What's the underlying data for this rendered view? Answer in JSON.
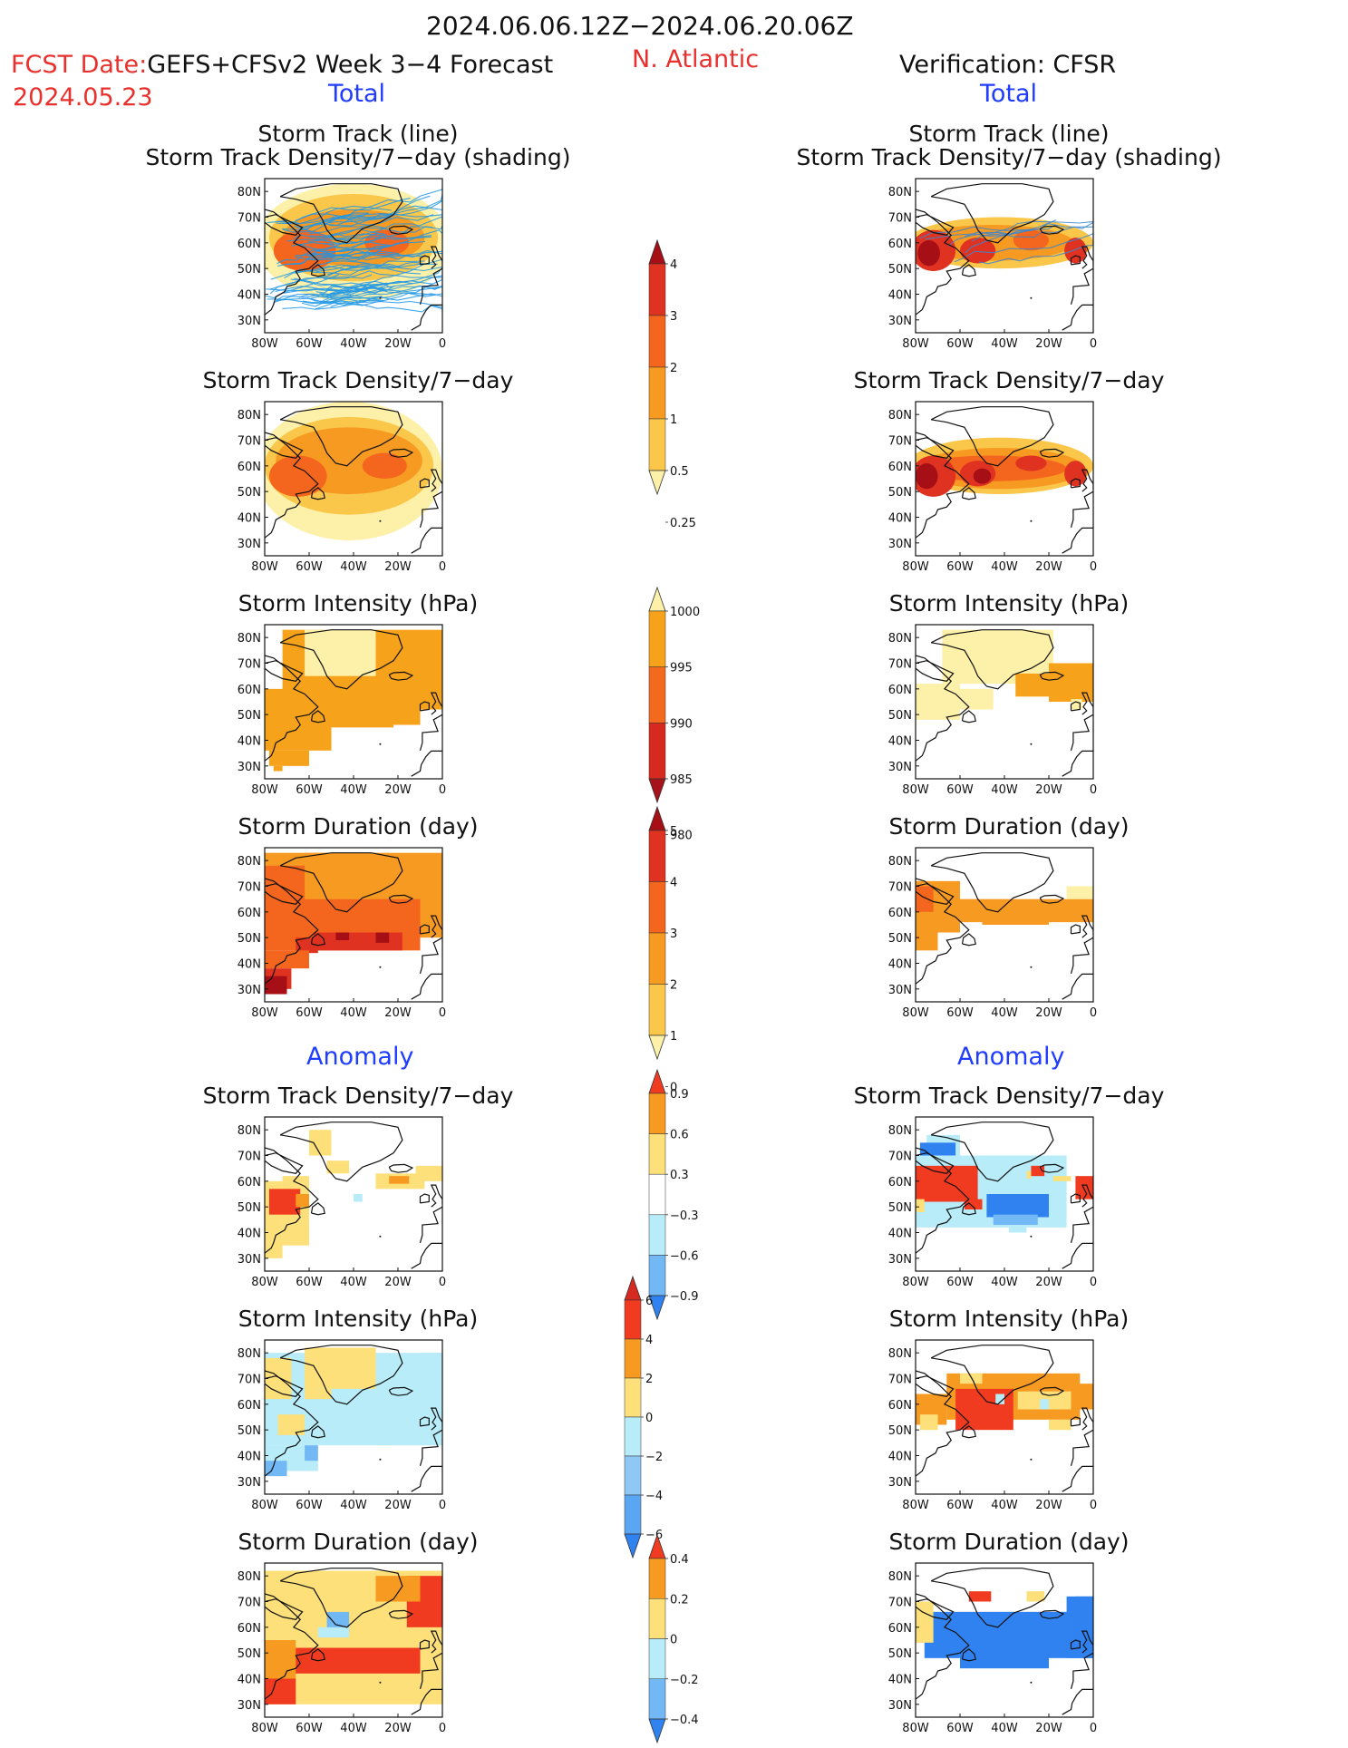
{
  "header": {
    "date_range": "2024.06.06.12Z−2024.06.20.06Z",
    "fcst_label": "FCST Date:",
    "model_label": "GEFS+CFSv2 Week 3−4 Forecast",
    "fcst_date": "2024.05.23",
    "region": "N. Atlantic",
    "verification": "Verification: CFSR",
    "total_left": "Total",
    "total_right": "Total",
    "anomaly_left": "Anomaly",
    "anomaly_right": "Anomaly"
  },
  "titles": {
    "track_line": "Storm Track (line)",
    "track_density_shading": "Storm Track Density/7−day (shading)",
    "track_density": "Storm Track Density/7−day",
    "intensity": "Storm Intensity (hPa)",
    "duration": "Storm Duration (day)"
  },
  "axes": {
    "lon_ticks": [
      "80W",
      "60W",
      "40W",
      "20W",
      "0"
    ],
    "lat_ticks": [
      "80N",
      "70N",
      "60N",
      "50N",
      "40N",
      "30N"
    ]
  },
  "colorbars": {
    "density": {
      "labels": [
        "4",
        "3",
        "2",
        "1",
        "0.5",
        "0.25"
      ],
      "colors": [
        "#a50f15",
        "#e03221",
        "#f4661d",
        "#f79a22",
        "#fbc74a",
        "#fdf0a8"
      ]
    },
    "intensity": {
      "labels": [
        "1000",
        "995",
        "990",
        "985",
        "980"
      ],
      "colors": [
        "#fdf0a8",
        "#f7a21b",
        "#f36a1f",
        "#d62a20",
        "#a8121a"
      ]
    },
    "duration": {
      "labels": [
        "5",
        "4",
        "3",
        "2",
        "1",
        "0"
      ],
      "colors": [
        "#a50f15",
        "#e03221",
        "#f4661d",
        "#f79a22",
        "#fbc74a",
        "#fdf0a8"
      ]
    },
    "anom_density": {
      "labels": [
        "0.9",
        "0.6",
        "0.3",
        "−0.3",
        "−0.6",
        "−0.9"
      ],
      "colors": [
        "#f03b20",
        "#f79a22",
        "#fde07a",
        "#ffffff",
        "#b7ecf8",
        "#72b8f4",
        "#2f82f0"
      ]
    },
    "anom_intensity": {
      "labels": [
        "6",
        "4",
        "2",
        "0",
        "−2",
        "−4",
        "−6"
      ],
      "colors": [
        "#d62a20",
        "#f03b20",
        "#f79a22",
        "#fde07a",
        "#b7ecf8",
        "#8fc8f5",
        "#5aa6f2",
        "#2f82f0"
      ]
    },
    "anom_duration": {
      "labels": [
        "0.4",
        "0.2",
        "0",
        "−0.2",
        "−0.4"
      ],
      "colors": [
        "#f03b20",
        "#f79a22",
        "#fde07a",
        "#b7ecf8",
        "#72b8f4",
        "#2f82f0"
      ]
    }
  }
}
